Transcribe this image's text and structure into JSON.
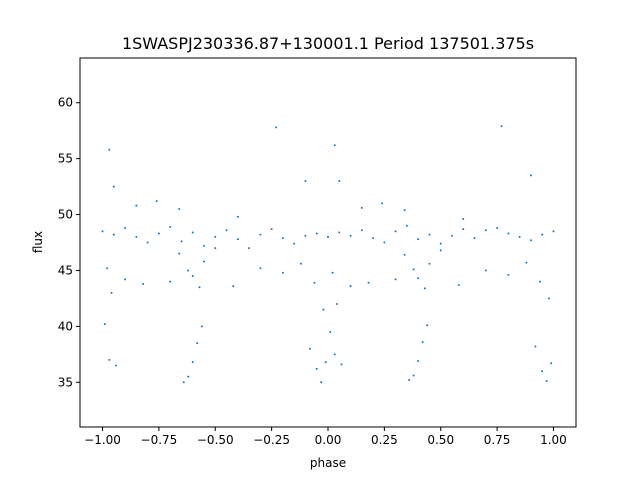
{
  "chart_data": {
    "type": "scatter",
    "title": "1SWASPJ230336.87+130001.1 Period 137501.375s",
    "xlabel": "phase",
    "ylabel": "flux",
    "xlim": [
      -1.1,
      1.1
    ],
    "ylim": [
      31,
      64
    ],
    "xticks": [
      -1.0,
      -0.75,
      -0.5,
      -0.25,
      0.0,
      0.25,
      0.5,
      0.75,
      1.0
    ],
    "xtick_labels": [
      "−1.00",
      "−0.75",
      "−0.50",
      "−0.25",
      "0.00",
      "0.25",
      "0.50",
      "0.75",
      "1.00"
    ],
    "yticks": [
      35,
      40,
      45,
      50,
      55,
      60
    ],
    "ytick_labels": [
      "35",
      "40",
      "45",
      "50",
      "55",
      "60"
    ],
    "grid": false,
    "legend": "none",
    "marker_color": "#1f77b4",
    "series": [
      {
        "x": [
          -1.0,
          -0.95,
          -0.9,
          -0.85,
          -0.8,
          -0.75,
          -0.7,
          -0.65,
          -0.6,
          -0.55,
          -0.5,
          -0.45,
          -0.4,
          -0.35,
          -0.3,
          -0.25,
          -0.2,
          -0.15,
          -0.1,
          -0.05,
          0.0,
          -0.98,
          -0.96,
          -0.9,
          -0.82,
          -0.7,
          -0.66,
          -0.62,
          -0.6,
          -0.57,
          -0.55,
          -0.5,
          -0.42,
          -0.3,
          -0.2,
          -0.12,
          -0.06,
          -0.02,
          -0.99,
          -0.97,
          -0.94,
          -0.64,
          -0.62,
          -0.6,
          -0.58,
          -0.56,
          -0.08,
          -0.05,
          -0.03,
          -0.01,
          -0.97,
          -0.95,
          -0.76,
          -0.66,
          -0.4,
          -0.23,
          -0.1,
          -0.85,
          0.0,
          0.05,
          0.1,
          0.15,
          0.2,
          0.25,
          0.3,
          0.35,
          0.4,
          0.45,
          0.5,
          0.55,
          0.6,
          0.65,
          0.7,
          0.75,
          0.8,
          0.85,
          0.9,
          0.95,
          1.0,
          0.02,
          0.04,
          0.1,
          0.18,
          0.3,
          0.34,
          0.38,
          0.4,
          0.43,
          0.45,
          0.5,
          0.58,
          0.7,
          0.8,
          0.88,
          0.94,
          0.98,
          0.01,
          0.03,
          0.06,
          0.36,
          0.38,
          0.4,
          0.42,
          0.44,
          0.92,
          0.95,
          0.97,
          0.99,
          0.03,
          0.05,
          0.24,
          0.34,
          0.6,
          0.77,
          0.9,
          0.15
        ],
        "y": [
          48.5,
          48.2,
          48.8,
          48.0,
          47.5,
          48.3,
          48.9,
          47.6,
          48.4,
          47.2,
          48.0,
          48.6,
          47.8,
          47.0,
          48.2,
          48.7,
          47.9,
          47.4,
          48.1,
          48.3,
          48.0,
          45.2,
          43.0,
          44.2,
          43.8,
          44.0,
          46.5,
          45.0,
          44.5,
          43.5,
          45.8,
          47.0,
          43.6,
          45.2,
          44.8,
          45.6,
          43.9,
          41.5,
          40.2,
          37.0,
          36.5,
          35.0,
          35.5,
          36.8,
          38.5,
          40.0,
          38.0,
          36.2,
          35.0,
          36.8,
          55.8,
          52.5,
          51.2,
          50.5,
          49.8,
          57.8,
          53.0,
          50.8,
          48.0,
          48.4,
          48.1,
          48.6,
          47.9,
          47.5,
          48.5,
          49.0,
          47.8,
          48.2,
          47.4,
          48.1,
          48.7,
          47.9,
          48.6,
          48.8,
          48.3,
          48.0,
          47.7,
          48.2,
          48.5,
          44.8,
          42.0,
          43.6,
          43.9,
          44.2,
          46.4,
          45.1,
          44.3,
          43.4,
          45.6,
          46.8,
          43.7,
          45.0,
          44.6,
          45.7,
          44.0,
          42.5,
          39.5,
          37.5,
          36.6,
          35.2,
          35.6,
          36.9,
          38.6,
          40.1,
          38.2,
          36.0,
          35.1,
          36.7,
          56.2,
          53.0,
          51.0,
          50.4,
          49.6,
          57.9,
          53.5,
          50.6
        ]
      }
    ]
  }
}
